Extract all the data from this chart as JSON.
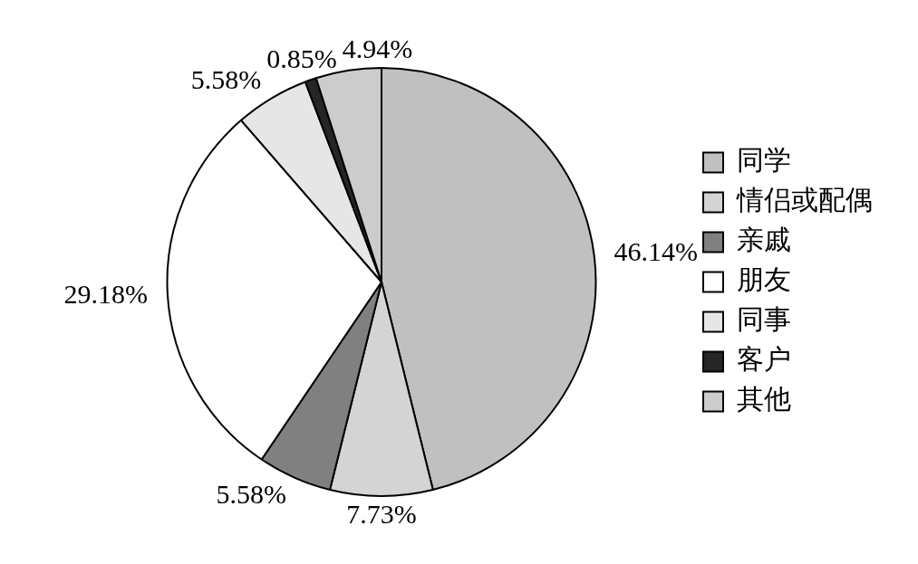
{
  "chart_data": {
    "type": "pie",
    "categories": [
      "同学",
      "情侣或配偶",
      "亲戚",
      "朋友",
      "同事",
      "客户",
      "其他"
    ],
    "values": [
      46.14,
      7.73,
      5.58,
      29.18,
      5.58,
      0.85,
      4.94
    ],
    "colors": [
      "#c0c0c0",
      "#d4d4d4",
      "#808080",
      "#ffffff",
      "#e6e6e6",
      "#262626",
      "#cccccc"
    ],
    "value_labels": [
      "46.14%",
      "7.73%",
      "5.58%",
      "29.18%",
      "5.58%",
      "0.85%",
      "4.94%"
    ],
    "legend": "right"
  }
}
